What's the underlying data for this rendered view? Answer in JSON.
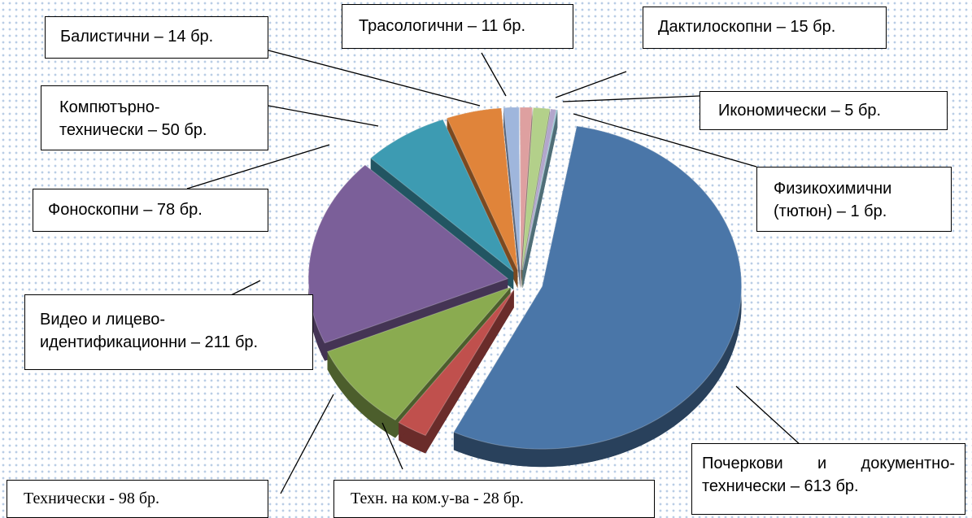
{
  "chart_data": {
    "type": "pie",
    "values": [
      613,
      28,
      98,
      211,
      78,
      50,
      14,
      11,
      15,
      5,
      1
    ],
    "value_labels": [
      "Почеркови и документно-технически – 613 бр.",
      "Техн. на ком.у-ва - 28 бр.",
      "Технически - 98 бр.",
      "Видео и лицево-идентификационни – 211 бр.",
      "Фоноскопни – 78 бр.",
      "Компютърно-\nтехнически – 50 бр.",
      "Балистични – 14 бр.",
      "Трасологични – 11 бр.",
      "Дактилоскопни – 15 бр.",
      "Икономически – 5 бр.",
      "Физикохимични (тютюн) – 1 бр."
    ],
    "colors": [
      "#4a76a8",
      "#c0504d",
      "#8aab50",
      "#7b5f99",
      "#3d9bb2",
      "#e0843a",
      "#9fb6dc",
      "#dea0a0",
      "#b3d08a",
      "#b2a6cc",
      "#8fc8d8"
    ]
  }
}
